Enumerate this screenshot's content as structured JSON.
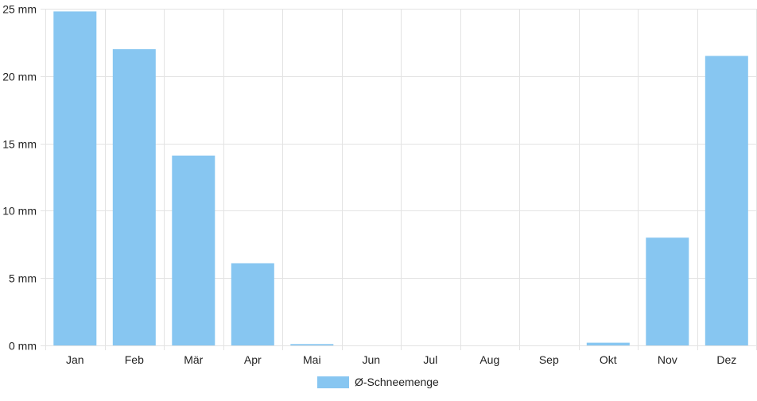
{
  "chart_data": {
    "type": "bar",
    "categories": [
      "Jan",
      "Feb",
      "Mär",
      "Apr",
      "Mai",
      "Jun",
      "Jul",
      "Aug",
      "Sep",
      "Okt",
      "Nov",
      "Dez"
    ],
    "series": [
      {
        "name": "Ø-Schneemenge",
        "values": [
          24.8,
          22.0,
          14.1,
          6.1,
          0.1,
          0,
          0,
          0,
          0,
          0.2,
          8.0,
          21.5
        ]
      }
    ],
    "y_unit": "mm",
    "ylim": [
      0,
      25
    ],
    "y_ticks": [
      0,
      5,
      10,
      15,
      20,
      25
    ],
    "grid": true,
    "legend_position": "bottom-center",
    "colors": {
      "bar": "#87c6f1",
      "grid": "#e3e3e3",
      "axis_text": "#222222"
    }
  }
}
